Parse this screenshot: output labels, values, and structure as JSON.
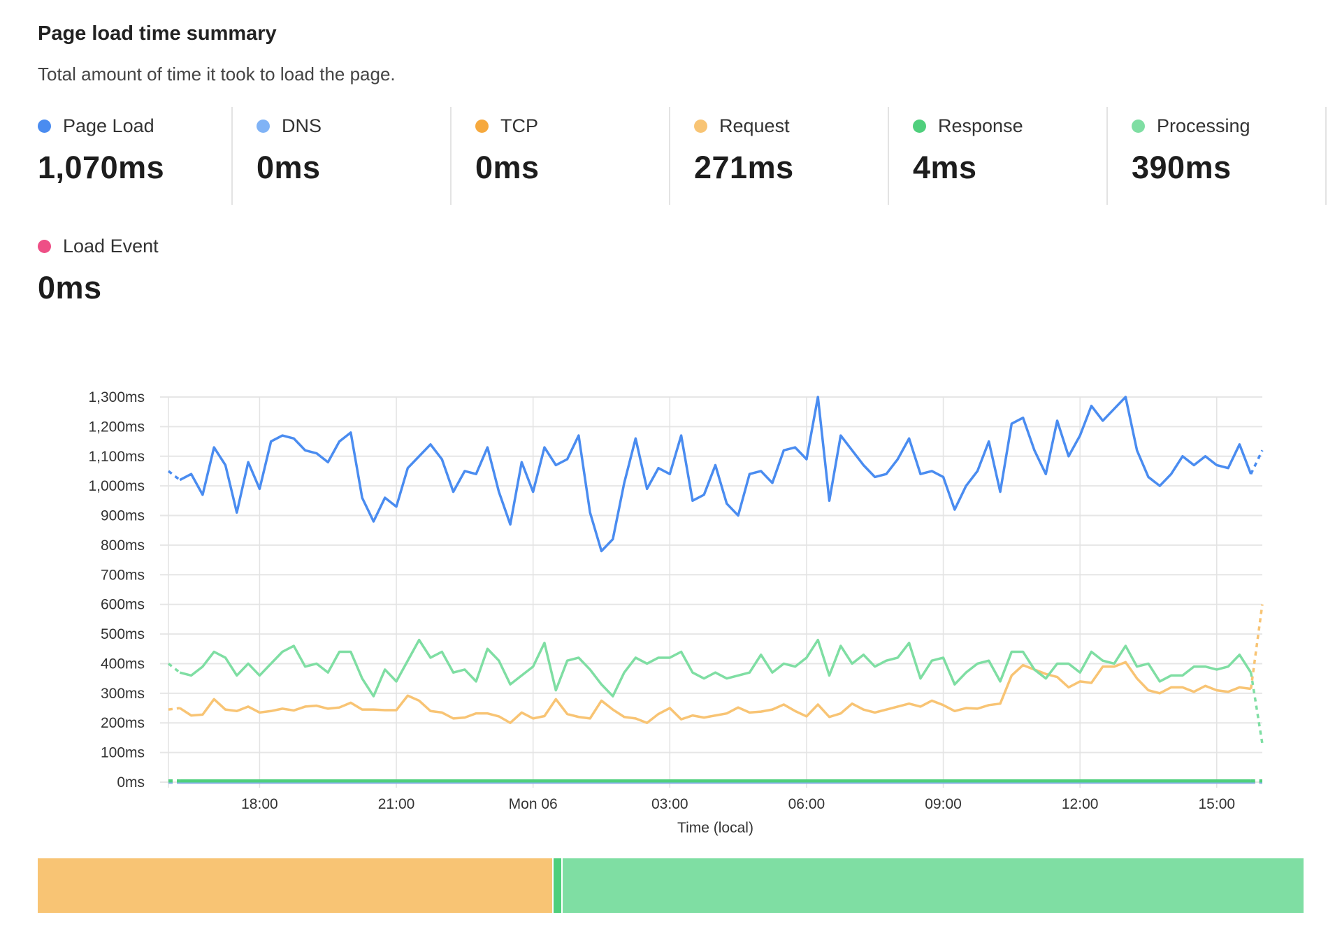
{
  "header": {
    "title": "Page load time summary",
    "subtitle": "Total amount of time it took to load the page."
  },
  "metrics": [
    {
      "label": "Page Load",
      "value": "1,070ms",
      "color": "#4a8cf0"
    },
    {
      "label": "DNS",
      "value": "0ms",
      "color": "#80b3f6"
    },
    {
      "label": "TCP",
      "value": "0ms",
      "color": "#f6a93e"
    },
    {
      "label": "Request",
      "value": "271ms",
      "color": "#f8c474"
    },
    {
      "label": "Response",
      "value": "4ms",
      "color": "#4fcf7c"
    },
    {
      "label": "Processing",
      "value": "390ms",
      "color": "#7fdea3"
    },
    {
      "label": "Load Event",
      "value": "0ms",
      "color": "#ee4f86"
    }
  ],
  "chart_data": {
    "type": "line",
    "xlabel": "Time (local)",
    "ylabel": "",
    "ylim": [
      0,
      1300
    ],
    "yticks": [
      "0ms",
      "100ms",
      "200ms",
      "300ms",
      "400ms",
      "500ms",
      "600ms",
      "700ms",
      "800ms",
      "900ms",
      "1,000ms",
      "1,100ms",
      "1,200ms",
      "1,300ms"
    ],
    "ytick_values": [
      0,
      100,
      200,
      300,
      400,
      500,
      600,
      700,
      800,
      900,
      1000,
      1100,
      1200,
      1300
    ],
    "xticks": [
      "18:00",
      "21:00",
      "Mon 06",
      "03:00",
      "06:00",
      "09:00",
      "12:00",
      "15:00"
    ],
    "xtick_hours": [
      2,
      5,
      8,
      11,
      14,
      17,
      20,
      23
    ],
    "x_range_hours": [
      0,
      24
    ],
    "x_interval_minutes": 15,
    "grid": true,
    "legend": "none",
    "dashed_ends": true,
    "series": [
      {
        "key": "page_load",
        "color": "#4a8cf0",
        "values": [
          1050,
          1020,
          1040,
          970,
          1130,
          1070,
          910,
          1080,
          990,
          1150,
          1170,
          1160,
          1120,
          1110,
          1080,
          1150,
          1180,
          960,
          880,
          960,
          930,
          1060,
          1100,
          1140,
          1090,
          980,
          1050,
          1040,
          1130,
          980,
          870,
          1080,
          980,
          1130,
          1070,
          1090,
          1170,
          910,
          780,
          820,
          1010,
          1160,
          990,
          1060,
          1040,
          1170,
          950,
          970,
          1070,
          940,
          900,
          1040,
          1050,
          1010,
          1120,
          1130,
          1090,
          1300,
          950,
          1170,
          1120,
          1070,
          1030,
          1040,
          1090,
          1160,
          1040,
          1050,
          1030,
          920,
          1000,
          1050,
          1150,
          980,
          1210,
          1230,
          1120,
          1040,
          1220,
          1100,
          1170,
          1270,
          1220,
          1260,
          1300,
          1120,
          1030,
          1000,
          1040,
          1100,
          1070,
          1100,
          1070,
          1060,
          1140,
          1040,
          1120
        ]
      },
      {
        "key": "processing",
        "color": "#7fdea3",
        "values": [
          400,
          370,
          360,
          390,
          440,
          420,
          360,
          400,
          360,
          400,
          440,
          460,
          390,
          400,
          370,
          440,
          440,
          350,
          290,
          380,
          340,
          410,
          480,
          420,
          440,
          370,
          380,
          340,
          450,
          410,
          330,
          360,
          390,
          470,
          310,
          410,
          420,
          380,
          330,
          290,
          370,
          420,
          400,
          420,
          420,
          440,
          370,
          350,
          370,
          350,
          360,
          370,
          430,
          370,
          400,
          390,
          420,
          480,
          360,
          460,
          400,
          430,
          390,
          410,
          420,
          470,
          350,
          410,
          420,
          330,
          370,
          400,
          410,
          340,
          440,
          440,
          380,
          350,
          400,
          400,
          370,
          440,
          410,
          400,
          460,
          390,
          400,
          340,
          360,
          360,
          390,
          390,
          380,
          390,
          430,
          370,
          130
        ]
      },
      {
        "key": "request",
        "color": "#f8c474",
        "values": [
          245,
          250,
          225,
          228,
          280,
          245,
          240,
          255,
          235,
          240,
          248,
          242,
          255,
          258,
          248,
          252,
          268,
          245,
          245,
          243,
          243,
          292,
          275,
          240,
          235,
          215,
          218,
          232,
          232,
          222,
          200,
          235,
          215,
          223,
          280,
          230,
          220,
          215,
          275,
          245,
          220,
          215,
          200,
          230,
          250,
          212,
          225,
          218,
          225,
          232,
          252,
          235,
          238,
          245,
          262,
          240,
          222,
          262,
          220,
          232,
          265,
          245,
          235,
          245,
          255,
          265,
          255,
          275,
          260,
          240,
          250,
          248,
          260,
          265,
          360,
          395,
          380,
          365,
          355,
          320,
          340,
          335,
          390,
          390,
          405,
          350,
          310,
          300,
          320,
          320,
          305,
          325,
          310,
          305,
          320,
          315,
          600
        ]
      },
      {
        "key": "response",
        "color": "#4fcf7c",
        "constant": 4
      },
      {
        "key": "dns",
        "color": "#80b3f6",
        "constant": 0
      },
      {
        "key": "tcp",
        "color": "#f6a93e",
        "constant": 0
      },
      {
        "key": "load_event",
        "color": "#ee4f86",
        "constant": 0
      }
    ]
  },
  "breakdown_bar": [
    {
      "label": "Request",
      "value": 271,
      "color": "#f8c474"
    },
    {
      "label": "Response",
      "value": 4,
      "color": "#4fcf7c"
    },
    {
      "label": "Processing",
      "value": 390,
      "color": "#7fdea3"
    }
  ]
}
